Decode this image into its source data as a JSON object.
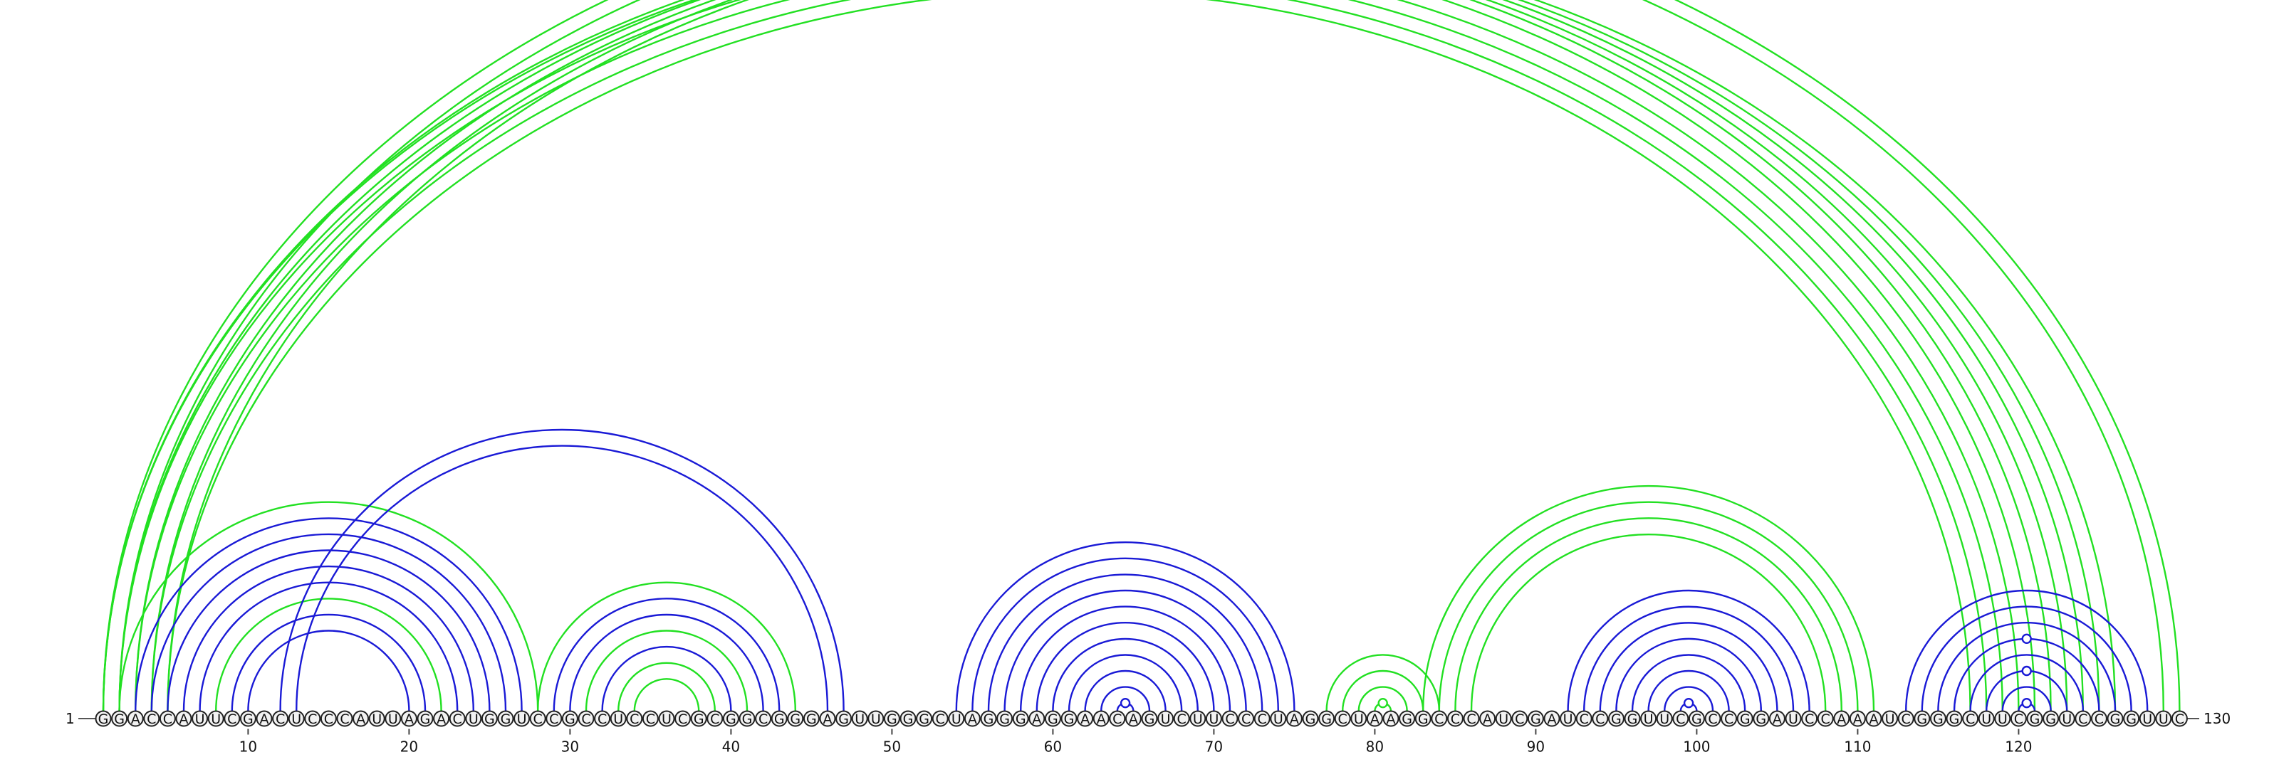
{
  "sequence": "GGACCAUUCGACUCCCAUUAGACUGGUCCGCCUCCUCGCGGCGGGAGUUGGGCUAGGGAGGAACAGUCUUCCCUAGGCUAAGGCCCAUCGAUCCGGUUCGCCGGAUCCAAAUCGGGCUUCGGUCCGGUUC",
  "start_label": "1",
  "end_label": "130",
  "ticks": [
    10,
    20,
    30,
    40,
    50,
    60,
    70,
    80,
    90,
    100,
    110,
    120
  ],
  "colors": {
    "green": "#22e022",
    "blue": "#1a1ad6"
  },
  "arcs": [
    {
      "i": 1,
      "j": 121,
      "c": "green"
    },
    {
      "i": 1,
      "j": 122,
      "c": "green"
    },
    {
      "i": 2,
      "j": 120,
      "c": "green"
    },
    {
      "i": 2,
      "j": 123,
      "c": "green"
    },
    {
      "i": 3,
      "j": 119,
      "c": "green"
    },
    {
      "i": 3,
      "j": 124,
      "c": "green"
    },
    {
      "i": 4,
      "j": 118,
      "c": "green"
    },
    {
      "i": 4,
      "j": 125,
      "c": "green"
    },
    {
      "i": 5,
      "j": 117,
      "c": "green"
    },
    {
      "i": 5,
      "j": 126,
      "c": "green"
    },
    {
      "i": 1,
      "j": 130,
      "c": "green"
    },
    {
      "i": 2,
      "j": 129,
      "c": "green"
    },
    {
      "i": 2,
      "j": 28,
      "c": "green"
    },
    {
      "i": 3,
      "j": 27,
      "c": "blue"
    },
    {
      "i": 4,
      "j": 26,
      "c": "blue"
    },
    {
      "i": 5,
      "j": 25,
      "c": "blue"
    },
    {
      "i": 6,
      "j": 24,
      "c": "blue"
    },
    {
      "i": 7,
      "j": 23,
      "c": "blue"
    },
    {
      "i": 8,
      "j": 22,
      "c": "green"
    },
    {
      "i": 9,
      "j": 21,
      "c": "blue"
    },
    {
      "i": 10,
      "j": 20,
      "c": "blue"
    },
    {
      "i": 12,
      "j": 47,
      "c": "blue"
    },
    {
      "i": 13,
      "j": 46,
      "c": "blue"
    },
    {
      "i": 28,
      "j": 44,
      "c": "green"
    },
    {
      "i": 29,
      "j": 43,
      "c": "blue"
    },
    {
      "i": 30,
      "j": 42,
      "c": "blue"
    },
    {
      "i": 31,
      "j": 41,
      "c": "green"
    },
    {
      "i": 32,
      "j": 40,
      "c": "blue"
    },
    {
      "i": 33,
      "j": 39,
      "c": "green"
    },
    {
      "i": 34,
      "j": 38,
      "c": "green"
    },
    {
      "i": 54,
      "j": 75,
      "c": "blue"
    },
    {
      "i": 55,
      "j": 74,
      "c": "blue"
    },
    {
      "i": 56,
      "j": 73,
      "c": "blue"
    },
    {
      "i": 57,
      "j": 72,
      "c": "blue"
    },
    {
      "i": 58,
      "j": 71,
      "c": "blue"
    },
    {
      "i": 59,
      "j": 70,
      "c": "blue"
    },
    {
      "i": 60,
      "j": 69,
      "c": "blue"
    },
    {
      "i": 61,
      "j": 68,
      "c": "blue"
    },
    {
      "i": 62,
      "j": 67,
      "c": "blue"
    },
    {
      "i": 63,
      "j": 66,
      "c": "blue"
    },
    {
      "i": 64,
      "j": 65,
      "c": "blue",
      "dot": true
    },
    {
      "i": 77,
      "j": 84,
      "c": "green"
    },
    {
      "i": 78,
      "j": 83,
      "c": "green"
    },
    {
      "i": 79,
      "j": 82,
      "c": "green"
    },
    {
      "i": 80,
      "j": 81,
      "c": "green",
      "dot": true
    },
    {
      "i": 83,
      "j": 111,
      "c": "green"
    },
    {
      "i": 84,
      "j": 110,
      "c": "green"
    },
    {
      "i": 85,
      "j": 109,
      "c": "green"
    },
    {
      "i": 86,
      "j": 108,
      "c": "green"
    },
    {
      "i": 92,
      "j": 107,
      "c": "blue"
    },
    {
      "i": 93,
      "j": 106,
      "c": "blue"
    },
    {
      "i": 94,
      "j": 105,
      "c": "blue"
    },
    {
      "i": 95,
      "j": 104,
      "c": "blue"
    },
    {
      "i": 96,
      "j": 103,
      "c": "blue"
    },
    {
      "i": 97,
      "j": 102,
      "c": "blue"
    },
    {
      "i": 98,
      "j": 101,
      "c": "blue"
    },
    {
      "i": 99,
      "j": 100,
      "c": "blue",
      "dot": true
    },
    {
      "i": 113,
      "j": 128,
      "c": "blue"
    },
    {
      "i": 114,
      "j": 127,
      "c": "blue"
    },
    {
      "i": 115,
      "j": 126,
      "c": "blue"
    },
    {
      "i": 116,
      "j": 125,
      "c": "blue",
      "dot": true
    },
    {
      "i": 117,
      "j": 124,
      "c": "blue"
    },
    {
      "i": 118,
      "j": 123,
      "c": "blue",
      "dot": true
    },
    {
      "i": 119,
      "j": 122,
      "c": "blue"
    },
    {
      "i": 120,
      "j": 121,
      "c": "blue",
      "dot": true
    }
  ]
}
